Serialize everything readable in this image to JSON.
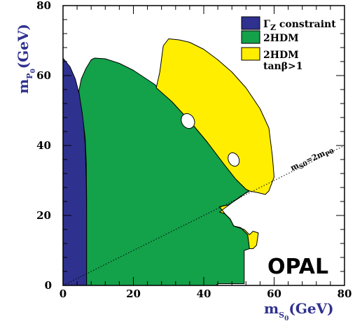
{
  "chart_data": {
    "type": "area",
    "xlim": [
      0,
      80
    ],
    "ylim": [
      0,
      80
    ],
    "x_ticks": [
      0,
      20,
      40,
      60,
      80
    ],
    "y_ticks": [
      20,
      40,
      60,
      80
    ],
    "xlabel": {
      "main": "m",
      "sub": "S",
      "subsup": "0",
      "unit": "(GeV)"
    },
    "ylabel": {
      "main": "m",
      "sub": "P",
      "subsup": "0",
      "unit": "(GeV)"
    },
    "legend_placement": "top-right",
    "legend": [
      {
        "label_main": "Γ",
        "label_sub": "Z",
        "label_rest": " constraint",
        "color": "#2f318f"
      },
      {
        "label_main": "2HDM",
        "label_sub": "",
        "label_rest": "",
        "color": "#13a14a"
      },
      {
        "label_main": "2HDM",
        "label_sub": "",
        "label_rest": "",
        "label_line2": "tanβ>1",
        "color": "#ffee00"
      }
    ],
    "series": [
      {
        "name": "Γ_Z constraint",
        "color": "#2f318f",
        "points": [
          [
            0,
            0
          ],
          [
            0,
            65
          ],
          [
            2,
            62.5
          ],
          [
            3.5,
            59
          ],
          [
            4.8,
            54
          ],
          [
            5.8,
            47
          ],
          [
            6.3,
            40
          ],
          [
            6.6,
            30
          ],
          [
            6.7,
            20
          ],
          [
            6.7,
            10
          ],
          [
            6.7,
            0
          ]
        ]
      },
      {
        "name": "2HDM",
        "color": "#13a14a",
        "points": [
          [
            6.7,
            0
          ],
          [
            6.7,
            25
          ],
          [
            6.6,
            35
          ],
          [
            6.3,
            42
          ],
          [
            5.5,
            49
          ],
          [
            4.5,
            55.5
          ],
          [
            5.2,
            59
          ],
          [
            6.5,
            62
          ],
          [
            8,
            64.5
          ],
          [
            9,
            65
          ],
          [
            12,
            64.8
          ],
          [
            16,
            63.5
          ],
          [
            20,
            61.5
          ],
          [
            26,
            57.5
          ],
          [
            31,
            52.5
          ],
          [
            36,
            47
          ],
          [
            41,
            41
          ],
          [
            45.5,
            35
          ],
          [
            49,
            30.5
          ],
          [
            52,
            27.5
          ],
          [
            53,
            27
          ],
          [
            52,
            26.5
          ],
          [
            50,
            25
          ],
          [
            47,
            23
          ],
          [
            44.5,
            22.5
          ],
          [
            46,
            20.5
          ],
          [
            47.5,
            19
          ],
          [
            48.5,
            17
          ],
          [
            50.5,
            16.5
          ],
          [
            52.5,
            14.5
          ],
          [
            53,
            10.5
          ],
          [
            51.5,
            10
          ],
          [
            51.5,
            5
          ],
          [
            51.5,
            0.5
          ],
          [
            44,
            0.5
          ],
          [
            43.5,
            0
          ]
        ]
      },
      {
        "name": "2HDM tanβ>1",
        "color": "#ffee00",
        "points": [
          [
            26.5,
            56.5
          ],
          [
            27.5,
            61
          ],
          [
            28.5,
            68.5
          ],
          [
            30,
            70.5
          ],
          [
            33,
            70.2
          ],
          [
            36,
            69.5
          ],
          [
            40,
            67.5
          ],
          [
            44,
            64.5
          ],
          [
            48,
            61
          ],
          [
            52,
            56.5
          ],
          [
            56,
            50.5
          ],
          [
            58.5,
            45
          ],
          [
            59.5,
            37
          ],
          [
            60,
            31
          ],
          [
            58.5,
            27
          ],
          [
            57.5,
            26
          ],
          [
            55.5,
            26.5
          ],
          [
            53,
            27
          ],
          [
            50.5,
            25.5
          ],
          [
            48.5,
            24
          ],
          [
            46.5,
            22.5
          ],
          [
            44.5,
            21
          ],
          [
            46,
            20.5
          ],
          [
            47.5,
            19
          ],
          [
            48.5,
            17
          ],
          [
            51.5,
            16
          ],
          [
            53,
            14.5
          ],
          [
            54,
            15.5
          ],
          [
            55.5,
            15
          ],
          [
            55,
            11.5
          ],
          [
            54,
            10.5
          ],
          [
            53,
            10.5
          ],
          [
            52.5,
            14.5
          ],
          [
            50.5,
            16.5
          ],
          [
            48.5,
            17
          ],
          [
            47.5,
            19
          ],
          [
            46,
            20.5
          ],
          [
            44.5,
            22.5
          ],
          [
            47,
            23
          ],
          [
            50,
            25
          ],
          [
            52,
            26.5
          ],
          [
            53,
            27
          ],
          [
            52,
            27.5
          ],
          [
            49,
            30.5
          ],
          [
            45.5,
            35
          ],
          [
            41,
            41
          ],
          [
            36,
            47
          ],
          [
            31,
            52.5
          ],
          [
            26.5,
            56.5
          ]
        ]
      }
    ],
    "holes": [
      {
        "center": [
          35.5,
          47
        ],
        "rx": 1.8,
        "ry": 2.2,
        "rotate": -30
      },
      {
        "center": [
          48.5,
          36
        ],
        "rx": 1.5,
        "ry": 2.0,
        "rotate": -25
      }
    ],
    "line": {
      "name": "m_S0 = 2 m_P0",
      "slope": 0.5,
      "label_parts": [
        "m",
        "S",
        "0",
        "=2m",
        "P",
        "0"
      ]
    },
    "annotation": "OPAL"
  }
}
